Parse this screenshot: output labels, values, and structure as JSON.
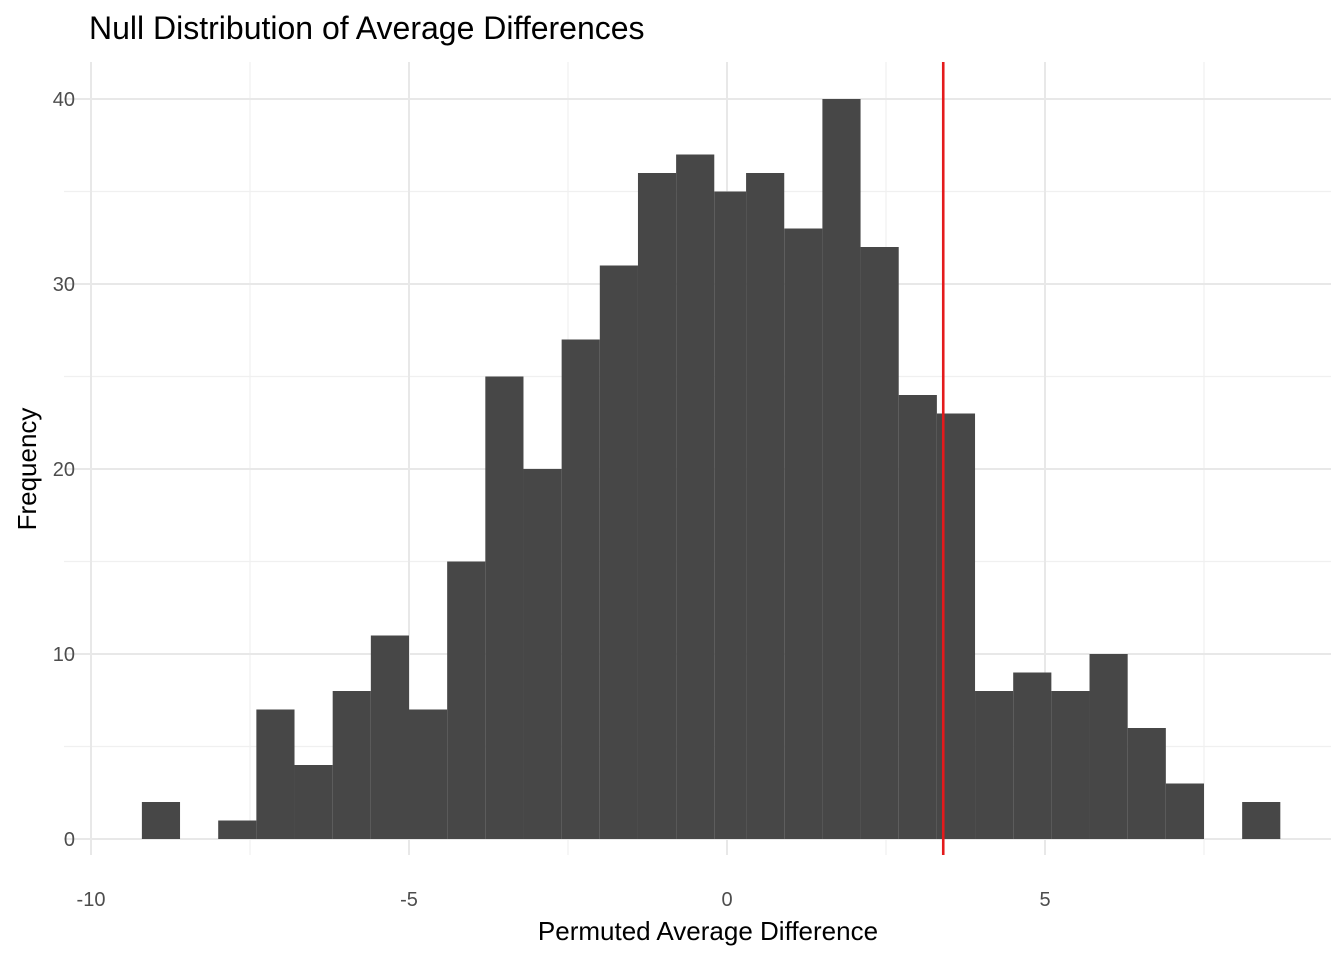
{
  "chart_data": {
    "type": "bar",
    "subtype": "histogram",
    "title": "Null Distribution of Average Differences",
    "xlabel": "Permuted Average Difference",
    "ylabel": "Frequency",
    "xlim": [
      -10,
      9.5
    ],
    "ylim": [
      0,
      42
    ],
    "x_ticks": [
      -10,
      -5,
      0,
      5
    ],
    "x_tick_labels": [
      "-10",
      "-5",
      "0",
      "5"
    ],
    "y_ticks": [
      0,
      10,
      20,
      30,
      40
    ],
    "y_tick_labels": [
      "0",
      "10",
      "20",
      "30",
      "40"
    ],
    "bins": [
      {
        "x0": -9.2,
        "x1": -8.6,
        "count": 2
      },
      {
        "x0": -8.0,
        "x1": -7.4,
        "count": 1
      },
      {
        "x0": -7.4,
        "x1": -6.8,
        "count": 7
      },
      {
        "x0": -6.8,
        "x1": -6.2,
        "count": 4
      },
      {
        "x0": -6.2,
        "x1": -5.6,
        "count": 8
      },
      {
        "x0": -5.6,
        "x1": -5.0,
        "count": 11
      },
      {
        "x0": -5.0,
        "x1": -4.4,
        "count": 7
      },
      {
        "x0": -4.4,
        "x1": -3.8,
        "count": 15
      },
      {
        "x0": -3.8,
        "x1": -3.2,
        "count": 25
      },
      {
        "x0": -3.2,
        "x1": -2.6,
        "count": 20
      },
      {
        "x0": -2.6,
        "x1": -2.0,
        "count": 27
      },
      {
        "x0": -2.0,
        "x1": -1.4,
        "count": 31
      },
      {
        "x0": -1.4,
        "x1": -0.8,
        "count": 36
      },
      {
        "x0": -0.8,
        "x1": -0.2,
        "count": 37
      },
      {
        "x0": -0.2,
        "x1": 0.3,
        "count": 35
      },
      {
        "x0": 0.3,
        "x1": 0.9,
        "count": 36
      },
      {
        "x0": 0.9,
        "x1": 1.5,
        "count": 33
      },
      {
        "x0": 1.5,
        "x1": 2.1,
        "count": 40
      },
      {
        "x0": 2.1,
        "x1": 2.7,
        "count": 32
      },
      {
        "x0": 2.7,
        "x1": 3.3,
        "count": 24
      },
      {
        "x0": 3.3,
        "x1": 3.9,
        "count": 23
      },
      {
        "x0": 3.9,
        "x1": 4.5,
        "count": 8
      },
      {
        "x0": 4.5,
        "x1": 5.1,
        "count": 9
      },
      {
        "x0": 5.1,
        "x1": 5.7,
        "count": 8
      },
      {
        "x0": 5.7,
        "x1": 6.3,
        "count": 10
      },
      {
        "x0": 6.3,
        "x1": 6.9,
        "count": 6
      },
      {
        "x0": 6.9,
        "x1": 7.5,
        "count": 3
      },
      {
        "x0": 8.1,
        "x1": 8.7,
        "count": 2
      }
    ],
    "reference_line": {
      "x": 3.4,
      "color": "#e41a1c"
    },
    "bar_color": "#474747",
    "grid": true,
    "legend": "none"
  }
}
